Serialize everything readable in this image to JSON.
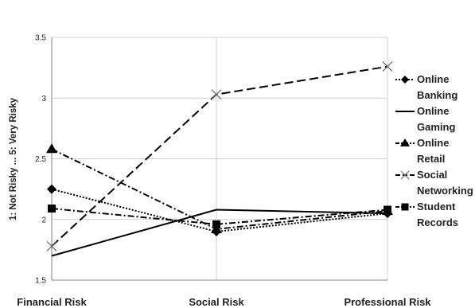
{
  "chart_data": {
    "type": "line",
    "title": "",
    "xlabel": "",
    "ylabel": "1: Not Risky ... 5: Very Risky",
    "categories": [
      "Financial Risk",
      "Social Risk",
      "Professional Risk"
    ],
    "ylim": [
      1.5,
      3.5
    ],
    "yticks": [
      "1.5",
      "2",
      "2.5",
      "3",
      "3.5"
    ],
    "grid": true,
    "legend_placement": "right",
    "series": [
      {
        "name": "Online Banking",
        "legend_lines": [
          "Online",
          "Banking"
        ],
        "values": [
          2.25,
          1.9,
          2.05
        ],
        "marker": "diamond",
        "dash": "dotted",
        "color": "#000000"
      },
      {
        "name": "Online Gaming",
        "legend_lines": [
          "Online",
          "Gaming"
        ],
        "values": [
          1.7,
          2.08,
          2.05
        ],
        "marker": "none",
        "dash": "solid",
        "color": "#000000"
      },
      {
        "name": "Online Retail",
        "legend_lines": [
          "Online",
          "Retail"
        ],
        "values": [
          2.58,
          1.92,
          2.07
        ],
        "marker": "triangle",
        "dash": "dashdot",
        "color": "#000000"
      },
      {
        "name": "Social Networking",
        "legend_lines": [
          "Social",
          "Networking"
        ],
        "values": [
          1.78,
          3.03,
          3.26
        ],
        "marker": "x",
        "dash": "longdash",
        "color": "#000000"
      },
      {
        "name": "Student Records",
        "legend_lines": [
          "Student",
          "Records"
        ],
        "values": [
          2.09,
          1.96,
          2.08
        ],
        "marker": "square",
        "dash": "dashdot",
        "color": "#000000"
      }
    ]
  }
}
